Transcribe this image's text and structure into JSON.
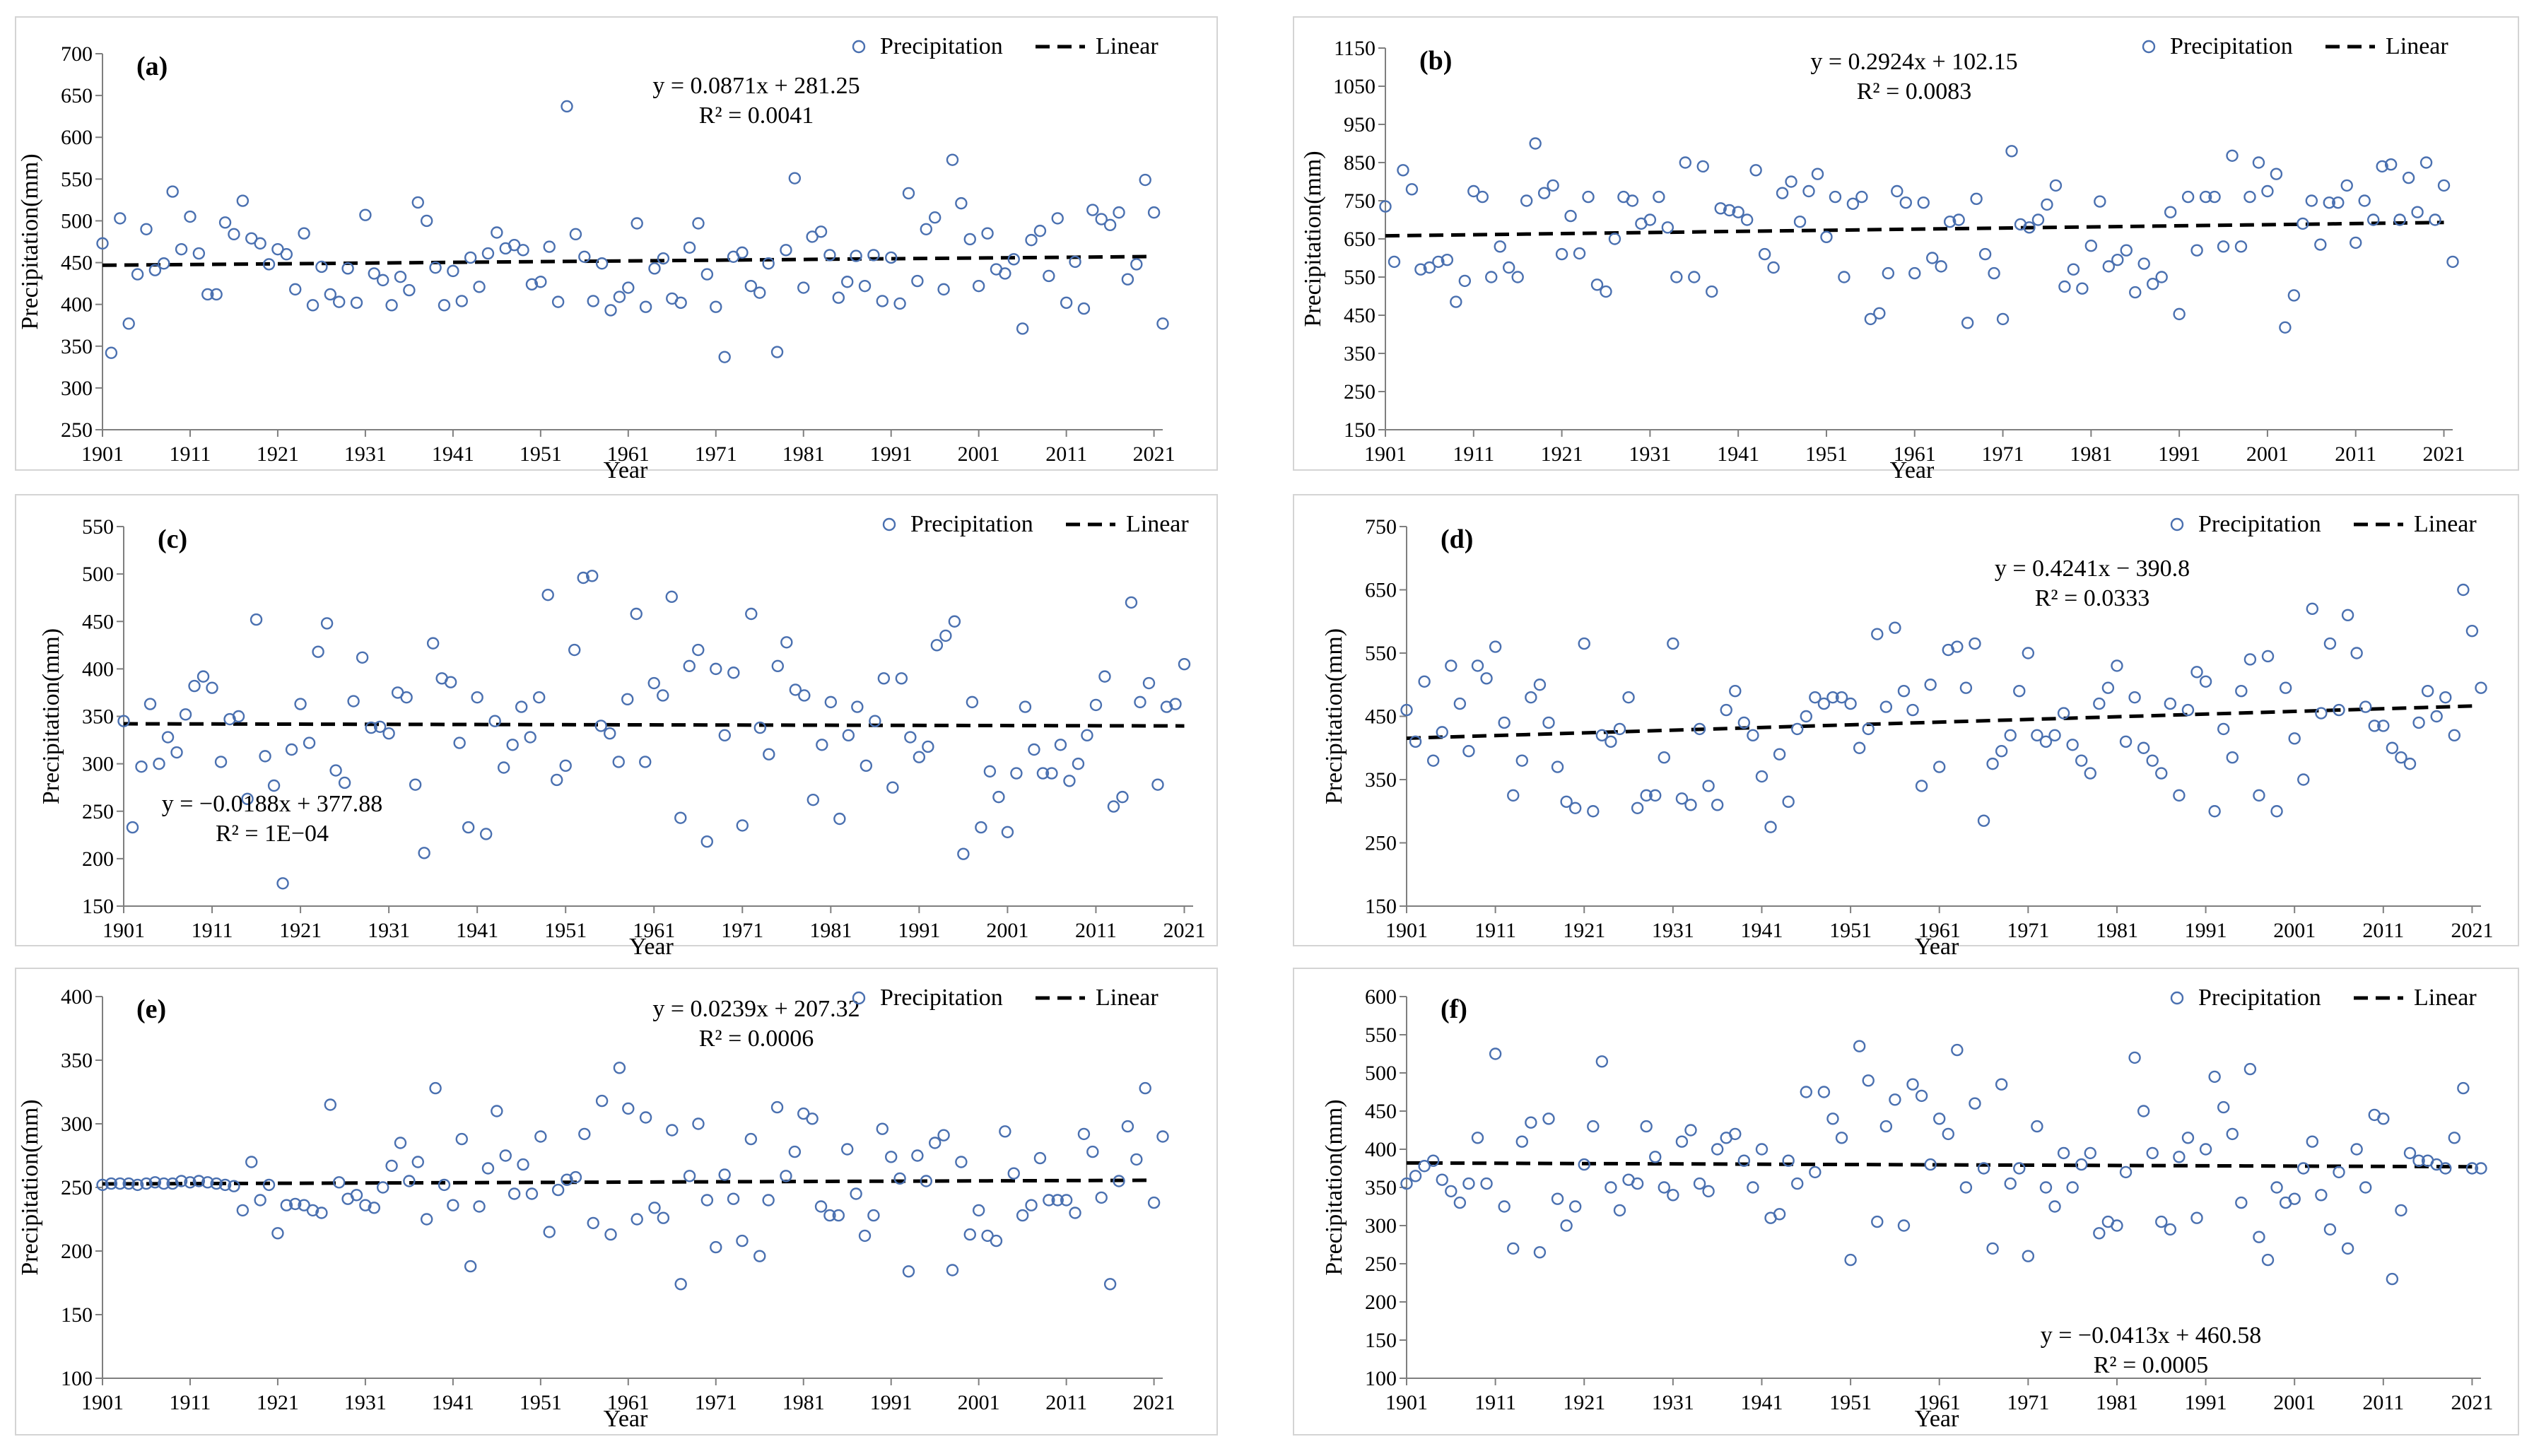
{
  "legend": {
    "series_label": "Precipitation",
    "trend_label": "Linear"
  },
  "chart_data": [
    {
      "type": "scatter",
      "panel": "(a)",
      "xlabel": "Year",
      "ylabel": "Precipitation(mm)",
      "xlim": [
        1901,
        2022
      ],
      "ylim": [
        250,
        700
      ],
      "ytick_step": 50,
      "xticks": [
        1901,
        1911,
        1921,
        1931,
        1941,
        1951,
        1961,
        1971,
        1981,
        1991,
        2001,
        2011,
        2021
      ],
      "equation": "y = 0.0871x + 281.25",
      "r2": "R² = 0.0041",
      "equation_pos": "upper-middle",
      "trend": {
        "slope": 0.0871,
        "intercept": 281.25
      },
      "x_start": 1901,
      "series": [
        {
          "name": "Precipitation",
          "values": [
            473,
            342,
            503,
            377,
            436,
            490,
            441,
            449,
            535,
            466,
            505,
            461,
            412,
            412,
            498,
            484,
            524,
            479,
            473,
            448,
            466,
            460,
            418,
            485,
            399,
            445,
            412,
            403,
            443,
            402,
            507,
            437,
            429,
            399,
            433,
            417,
            522,
            500,
            444,
            399,
            440,
            404,
            456,
            421,
            461,
            486,
            467,
            471,
            465,
            424,
            427,
            469,
            403,
            637,
            484,
            457,
            404,
            449,
            393,
            409,
            420,
            497,
            397,
            443,
            455,
            407,
            402,
            468,
            497,
            436,
            397,
            337,
            457,
            462,
            422,
            414,
            449,
            343,
            465,
            551,
            420,
            481,
            487,
            459,
            408,
            427,
            458,
            422,
            459,
            404,
            456,
            401,
            533,
            428,
            490,
            504,
            418,
            573,
            521,
            478,
            422,
            485,
            442,
            437,
            454,
            371,
            477,
            488,
            434,
            503,
            402,
            451,
            395,
            513,
            502,
            495,
            510,
            430,
            448,
            549,
            510,
            377
          ]
        }
      ]
    },
    {
      "type": "scatter",
      "panel": "(b)",
      "xlabel": "Year",
      "ylabel": "Precipitation(mm)",
      "xlim": [
        1901,
        2022
      ],
      "ylim": [
        150,
        1150
      ],
      "ytick_step": 100,
      "xticks": [
        1901,
        1911,
        1921,
        1931,
        1941,
        1951,
        1961,
        1971,
        1981,
        1991,
        2001,
        2011,
        2021
      ],
      "equation": "y = 0.2924x + 102.15",
      "r2": "R² = 0.0083",
      "equation_pos": "top-middle",
      "trend": {
        "slope": 0.2924,
        "intercept": 102.15
      },
      "x_start": 1901,
      "series": [
        {
          "name": "Precipitation",
          "values": [
            735,
            590,
            830,
            780,
            570,
            575,
            590,
            595,
            485,
            540,
            775,
            760,
            550,
            630,
            575,
            550,
            750,
            900,
            770,
            790,
            610,
            710,
            612,
            760,
            530,
            512,
            650,
            760,
            750,
            690,
            700,
            760,
            680,
            550,
            850,
            550,
            840,
            512,
            730,
            725,
            720,
            700,
            830,
            610,
            575,
            770,
            800,
            695,
            775,
            820,
            655,
            760,
            550,
            742,
            760,
            440,
            455,
            560,
            775,
            745,
            560,
            745,
            600,
            578,
            695,
            700,
            430,
            755,
            610,
            560,
            440,
            880,
            688,
            680,
            700,
            740,
            790,
            525,
            570,
            520,
            632,
            748,
            578,
            595,
            620,
            510,
            585,
            532,
            550,
            720,
            453,
            760,
            620,
            760,
            760,
            630,
            868,
            630,
            760,
            850,
            775,
            820,
            418,
            502,
            690,
            750,
            635,
            745,
            745,
            790,
            640,
            750,
            700,
            840,
            845,
            700,
            810,
            720,
            850,
            700,
            790,
            590
          ]
        }
      ]
    },
    {
      "type": "scatter",
      "panel": "(c)",
      "xlabel": "Year",
      "ylabel": "Precipitation(mm)",
      "xlim": [
        1901,
        2022
      ],
      "ylim": [
        150,
        550
      ],
      "ytick_step": 50,
      "xticks": [
        1901,
        1911,
        1921,
        1931,
        1941,
        1951,
        1961,
        1971,
        1981,
        1991,
        2001,
        2011,
        2021
      ],
      "equation": "y = −0.0188x + 377.88",
      "r2": "R² = 1E−04",
      "equation_pos": "lower-left",
      "trend": {
        "slope": -0.0188,
        "intercept": 377.88
      },
      "x_start": 1901,
      "series": [
        {
          "name": "Precipitation",
          "values": [
            345,
            233,
            297,
            363,
            300,
            328,
            312,
            352,
            382,
            392,
            380,
            302,
            347,
            350,
            263,
            452,
            308,
            277,
            174,
            315,
            363,
            322,
            418,
            448,
            293,
            280,
            366,
            412,
            338,
            339,
            332,
            375,
            370,
            278,
            206,
            427,
            390,
            386,
            322,
            233,
            370,
            226,
            345,
            296,
            320,
            360,
            328,
            370,
            478,
            283,
            298,
            420,
            496,
            498,
            340,
            332,
            302,
            368,
            458,
            302,
            385,
            372,
            476,
            243,
            403,
            420,
            218,
            400,
            330,
            396,
            235,
            458,
            338,
            310,
            403,
            428,
            378,
            372,
            262,
            320,
            365,
            242,
            330,
            360,
            298,
            345,
            390,
            275,
            390,
            328,
            307,
            318,
            425,
            435,
            450,
            205,
            365,
            233,
            292,
            265,
            228,
            290,
            360,
            315,
            290,
            290,
            320,
            282,
            300,
            330,
            362,
            392,
            255,
            265,
            470,
            365,
            385,
            278,
            360,
            363,
            405
          ]
        }
      ]
    },
    {
      "type": "scatter",
      "panel": "(d)",
      "xlabel": "Year",
      "ylabel": "Precipitation(mm)",
      "xlim": [
        1901,
        2022
      ],
      "ylim": [
        150,
        750
      ],
      "ytick_step": 100,
      "xticks": [
        1901,
        1911,
        1921,
        1931,
        1941,
        1951,
        1961,
        1971,
        1981,
        1991,
        2001,
        2011,
        2021
      ],
      "equation": "y = 0.4241x − 390.8",
      "r2": "R² = 0.0333",
      "equation_pos": "upper-middle",
      "trend": {
        "slope": 0.4241,
        "intercept": -390.8
      },
      "x_start": 1901,
      "series": [
        {
          "name": "Precipitation",
          "values": [
            460,
            410,
            505,
            380,
            425,
            530,
            470,
            395,
            530,
            510,
            560,
            440,
            325,
            380,
            480,
            500,
            440,
            370,
            315,
            305,
            565,
            300,
            420,
            410,
            430,
            480,
            305,
            325,
            325,
            385,
            565,
            320,
            310,
            430,
            340,
            310,
            460,
            490,
            440,
            420,
            355,
            275,
            390,
            315,
            430,
            450,
            480,
            470,
            480,
            480,
            470,
            400,
            430,
            580,
            465,
            590,
            490,
            460,
            340,
            500,
            370,
            555,
            560,
            495,
            565,
            285,
            375,
            395,
            420,
            490,
            550,
            420,
            410,
            420,
            455,
            405,
            380,
            360,
            470,
            495,
            530,
            410,
            480,
            400,
            380,
            360,
            470,
            325,
            460,
            520,
            505,
            300,
            430,
            385,
            490,
            540,
            325,
            545,
            300,
            495,
            415,
            350,
            620,
            455,
            565,
            460,
            610,
            550,
            465,
            435,
            435,
            400,
            385,
            375,
            440,
            490,
            450,
            480,
            420,
            650,
            585,
            495
          ]
        }
      ]
    },
    {
      "type": "scatter",
      "panel": "(e)",
      "xlabel": "Year",
      "ylabel": "Precipitation(mm)",
      "xlim": [
        1901,
        2022
      ],
      "ylim": [
        100,
        400
      ],
      "ytick_step": 50,
      "xticks": [
        1901,
        1911,
        1921,
        1931,
        1941,
        1951,
        1961,
        1971,
        1981,
        1991,
        2001,
        2011,
        2021
      ],
      "equation": "y = 0.0239x + 207.32",
      "r2": "R² = 0.0006",
      "equation_pos": "upper-middle",
      "trend": {
        "slope": 0.0239,
        "intercept": 207.32
      },
      "x_start": 1901,
      "series": [
        {
          "name": "Precipitation",
          "values": [
            252,
            253,
            253,
            253,
            252,
            253,
            254,
            253,
            253,
            255,
            254,
            255,
            254,
            253,
            252,
            251,
            232,
            270,
            240,
            252,
            214,
            236,
            237,
            236,
            232,
            230,
            315,
            254,
            241,
            244,
            236,
            234,
            250,
            267,
            285,
            255,
            270,
            225,
            328,
            252,
            236,
            288,
            188,
            235,
            265,
            310,
            275,
            245,
            268,
            245,
            290,
            215,
            248,
            256,
            258,
            292,
            222,
            318,
            213,
            344,
            312,
            225,
            305,
            234,
            226,
            295,
            174,
            259,
            300,
            240,
            203,
            260,
            241,
            208,
            288,
            196,
            240,
            313,
            259,
            278,
            308,
            304,
            235,
            228,
            228,
            280,
            245,
            212,
            228,
            296,
            274,
            257,
            184,
            275,
            255,
            285,
            291,
            185,
            270,
            213,
            232,
            212,
            208,
            294,
            261,
            228,
            236,
            273,
            240,
            240,
            240,
            230,
            292,
            278,
            242,
            174,
            255,
            298,
            272,
            328,
            238,
            290
          ]
        }
      ]
    },
    {
      "type": "scatter",
      "panel": "(f)",
      "xlabel": "Year",
      "ylabel": "Precipitation(mm)",
      "xlim": [
        1901,
        2022
      ],
      "ylim": [
        100,
        600
      ],
      "ytick_step": 50,
      "xticks": [
        1901,
        1911,
        1921,
        1931,
        1941,
        1951,
        1961,
        1971,
        1981,
        1991,
        2001,
        2011,
        2021
      ],
      "equation": "y = −0.0413x + 460.58",
      "r2": "R² = 0.0005",
      "equation_pos": "lower-right",
      "trend": {
        "slope": -0.0413,
        "intercept": 460.58
      },
      "x_start": 1901,
      "series": [
        {
          "name": "Precipitation",
          "values": [
            355,
            365,
            378,
            385,
            360,
            345,
            330,
            355,
            415,
            355,
            525,
            325,
            270,
            410,
            435,
            265,
            440,
            335,
            300,
            325,
            380,
            430,
            515,
            350,
            320,
            360,
            355,
            430,
            390,
            350,
            340,
            410,
            425,
            355,
            345,
            400,
            415,
            420,
            385,
            350,
            400,
            310,
            315,
            385,
            355,
            475,
            370,
            475,
            440,
            415,
            255,
            535,
            490,
            305,
            430,
            465,
            300,
            485,
            470,
            380,
            440,
            420,
            530,
            350,
            460,
            375,
            270,
            485,
            355,
            375,
            260,
            430,
            350,
            325,
            395,
            350,
            380,
            395,
            290,
            305,
            300,
            370,
            520,
            450,
            395,
            305,
            295,
            390,
            415,
            310,
            400,
            495,
            455,
            420,
            330,
            505,
            285,
            255,
            350,
            330,
            335,
            375,
            410,
            340,
            295,
            370,
            270,
            400,
            350,
            445,
            440,
            230,
            320,
            395,
            385,
            385,
            380,
            375,
            415,
            480,
            375,
            375
          ]
        }
      ]
    }
  ]
}
